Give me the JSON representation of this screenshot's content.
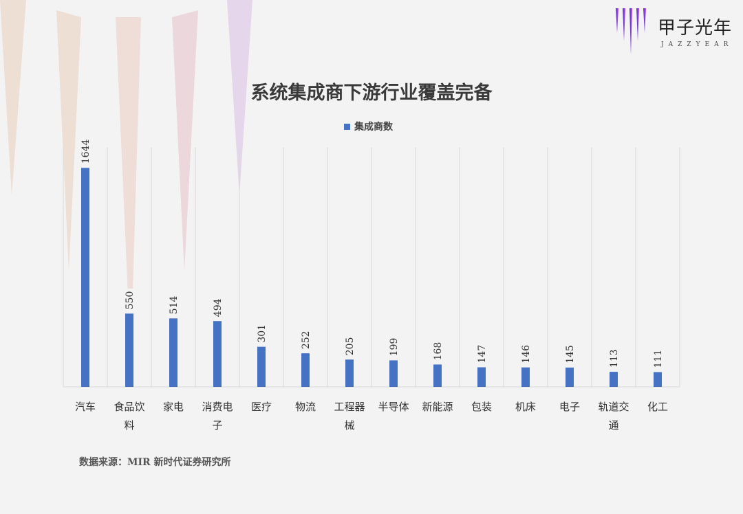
{
  "logo": {
    "cn": "甲子光年",
    "en": "JAZZYEAR"
  },
  "source": "数据来源：MIR 新时代证券研究所",
  "colors": {
    "bar": "#4472c4",
    "grid": "#d9d9d9"
  },
  "chart_data": {
    "type": "bar",
    "title": "系统集成商下游行业覆盖完备",
    "legend": [
      "集成商数"
    ],
    "legend_position": "top-center",
    "categories": [
      "汽车",
      "食品饮料",
      "家电",
      "消费电子",
      "医疗",
      "物流",
      "工程器械",
      "半导体",
      "新能源",
      "包装",
      "机床",
      "电子",
      "轨道交通",
      "化工"
    ],
    "series": [
      {
        "name": "集成商数",
        "values": [
          1644,
          550,
          514,
          494,
          301,
          252,
          205,
          199,
          168,
          147,
          146,
          145,
          113,
          111
        ]
      }
    ],
    "ylim": [
      0,
      1800
    ],
    "grid": "vertical separators",
    "xlabel": "",
    "ylabel": ""
  }
}
